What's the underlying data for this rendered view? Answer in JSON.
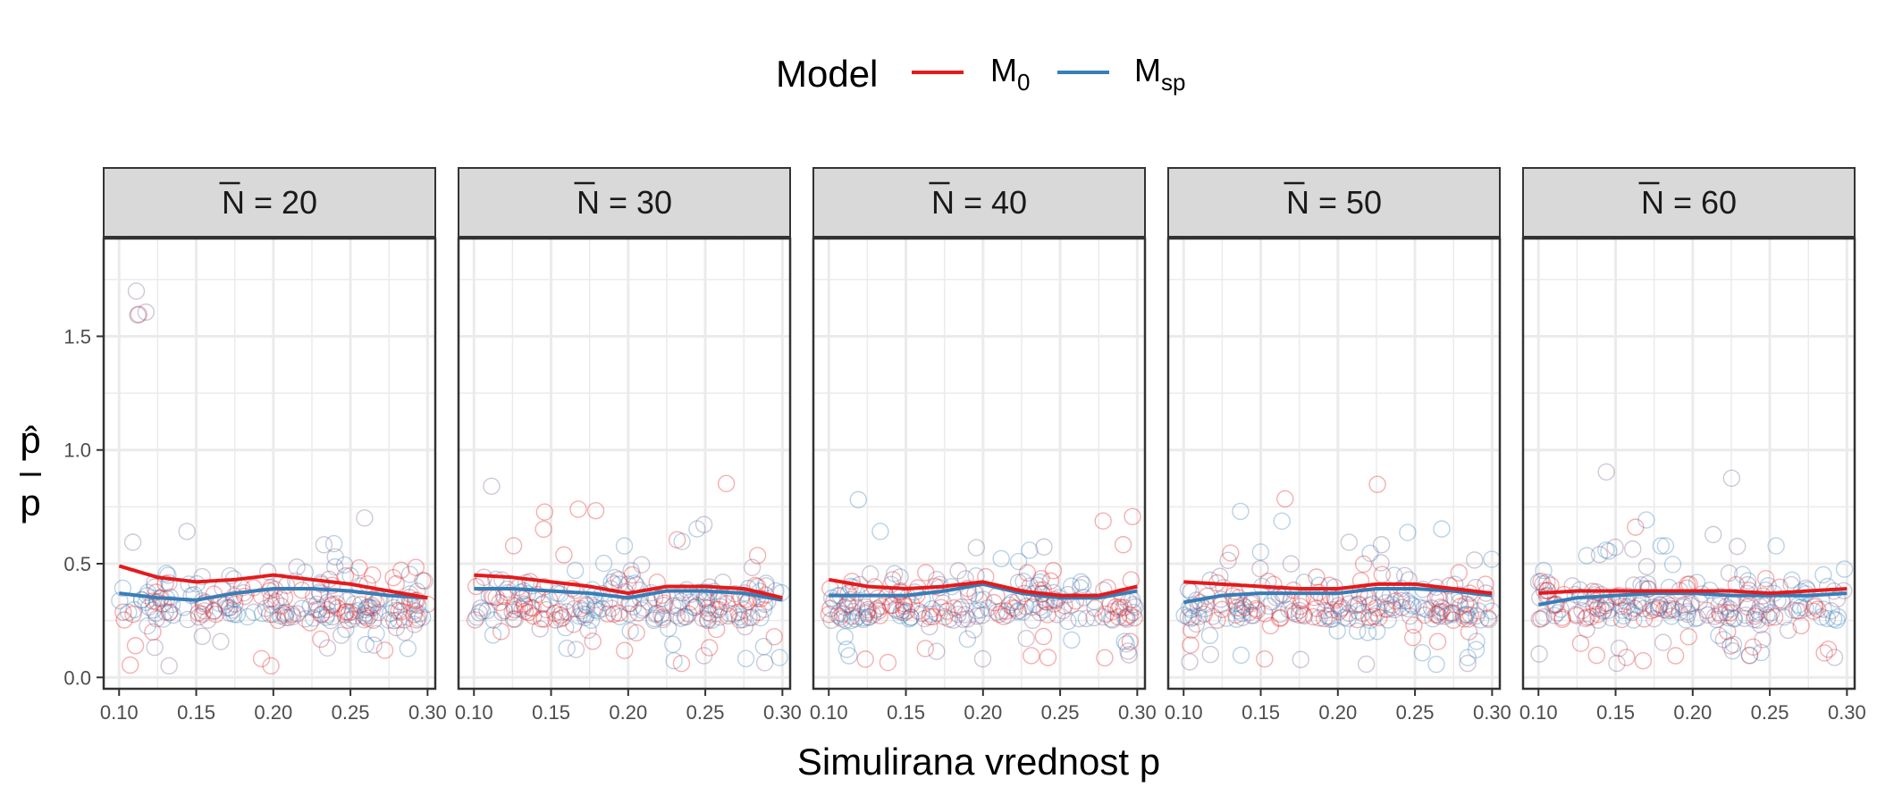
{
  "chart_data": {
    "type": "scatter",
    "title": "",
    "legend": {
      "title": "Model",
      "placement": "top-center",
      "entries": [
        {
          "base": "M",
          "sub": "0",
          "color": "#E41A1C"
        },
        {
          "base": "M",
          "sub": "sp",
          "color": "#377EB8"
        }
      ]
    },
    "xlabel": "Simulirana vrednost p",
    "ylabel": {
      "top": "p̂",
      "bottom": "p"
    },
    "xlim": [
      0.09,
      0.305
    ],
    "ylim": [
      -0.05,
      1.93
    ],
    "x_ticks": [
      0.1,
      0.15,
      0.2,
      0.25,
      0.3
    ],
    "x_tick_labels": [
      "0.10",
      "0.15",
      "0.20",
      "0.25",
      "0.30"
    ],
    "y_ticks": [
      0.0,
      0.5,
      1.0,
      1.5
    ],
    "y_tick_labels": [
      "0.0",
      "0.5",
      "1.0",
      "1.5"
    ],
    "grid": true,
    "facet_symbol": "N",
    "facets": [
      {
        "label_value": "= 20",
        "series": [
          {
            "name": "M0",
            "color": "#E41A1C",
            "x": [
              0.1,
              0.125,
              0.15,
              0.175,
              0.2,
              0.225,
              0.25,
              0.275,
              0.3
            ],
            "y": [
              0.49,
              0.44,
              0.42,
              0.43,
              0.45,
              0.43,
              0.41,
              0.38,
              0.35
            ]
          },
          {
            "name": "Msp",
            "color": "#377EB8",
            "x": [
              0.1,
              0.125,
              0.15,
              0.175,
              0.2,
              0.225,
              0.25,
              0.275,
              0.3
            ],
            "y": [
              0.37,
              0.35,
              0.34,
              0.37,
              0.39,
              0.39,
              0.38,
              0.36,
              0.35
            ]
          }
        ]
      },
      {
        "label_value": "= 30",
        "series": [
          {
            "name": "M0",
            "color": "#E41A1C",
            "x": [
              0.1,
              0.125,
              0.15,
              0.175,
              0.2,
              0.225,
              0.25,
              0.275,
              0.3
            ],
            "y": [
              0.45,
              0.44,
              0.42,
              0.4,
              0.37,
              0.4,
              0.4,
              0.39,
              0.35
            ]
          },
          {
            "name": "Msp",
            "color": "#377EB8",
            "x": [
              0.1,
              0.125,
              0.15,
              0.175,
              0.2,
              0.225,
              0.25,
              0.275,
              0.3
            ],
            "y": [
              0.39,
              0.39,
              0.38,
              0.37,
              0.35,
              0.38,
              0.38,
              0.37,
              0.34
            ]
          }
        ]
      },
      {
        "label_value": "= 40",
        "series": [
          {
            "name": "M0",
            "color": "#E41A1C",
            "x": [
              0.1,
              0.125,
              0.15,
              0.175,
              0.2,
              0.225,
              0.25,
              0.275,
              0.3
            ],
            "y": [
              0.43,
              0.4,
              0.39,
              0.4,
              0.42,
              0.38,
              0.36,
              0.36,
              0.4
            ]
          },
          {
            "name": "Msp",
            "color": "#377EB8",
            "x": [
              0.1,
              0.125,
              0.15,
              0.175,
              0.2,
              0.225,
              0.25,
              0.275,
              0.3
            ],
            "y": [
              0.36,
              0.36,
              0.36,
              0.38,
              0.41,
              0.37,
              0.35,
              0.35,
              0.38
            ]
          }
        ]
      },
      {
        "label_value": "= 50",
        "series": [
          {
            "name": "M0",
            "color": "#E41A1C",
            "x": [
              0.1,
              0.125,
              0.15,
              0.175,
              0.2,
              0.225,
              0.25,
              0.275,
              0.3
            ],
            "y": [
              0.42,
              0.41,
              0.4,
              0.39,
              0.39,
              0.41,
              0.41,
              0.39,
              0.37
            ]
          },
          {
            "name": "Msp",
            "color": "#377EB8",
            "x": [
              0.1,
              0.125,
              0.15,
              0.175,
              0.2,
              0.225,
              0.25,
              0.275,
              0.3
            ],
            "y": [
              0.33,
              0.36,
              0.37,
              0.37,
              0.37,
              0.39,
              0.39,
              0.38,
              0.36
            ]
          }
        ]
      },
      {
        "label_value": "= 60",
        "series": [
          {
            "name": "M0",
            "color": "#E41A1C",
            "x": [
              0.1,
              0.125,
              0.15,
              0.175,
              0.2,
              0.225,
              0.25,
              0.275,
              0.3
            ],
            "y": [
              0.37,
              0.38,
              0.38,
              0.38,
              0.38,
              0.38,
              0.37,
              0.38,
              0.39
            ]
          },
          {
            "name": "Msp",
            "color": "#377EB8",
            "x": [
              0.1,
              0.125,
              0.15,
              0.175,
              0.2,
              0.225,
              0.25,
              0.275,
              0.3
            ],
            "y": [
              0.32,
              0.35,
              0.36,
              0.37,
              0.37,
              0.36,
              0.36,
              0.36,
              0.37
            ]
          }
        ]
      }
    ],
    "scatter_points_per_series_per_facet": 120,
    "colors": {
      "m0": "#E41A1C",
      "msp": "#377EB8",
      "overlap": "#7A5C8E",
      "strip_bg": "#D9D9D9",
      "grid": "#EBEBEB",
      "frame": "#333333"
    }
  }
}
